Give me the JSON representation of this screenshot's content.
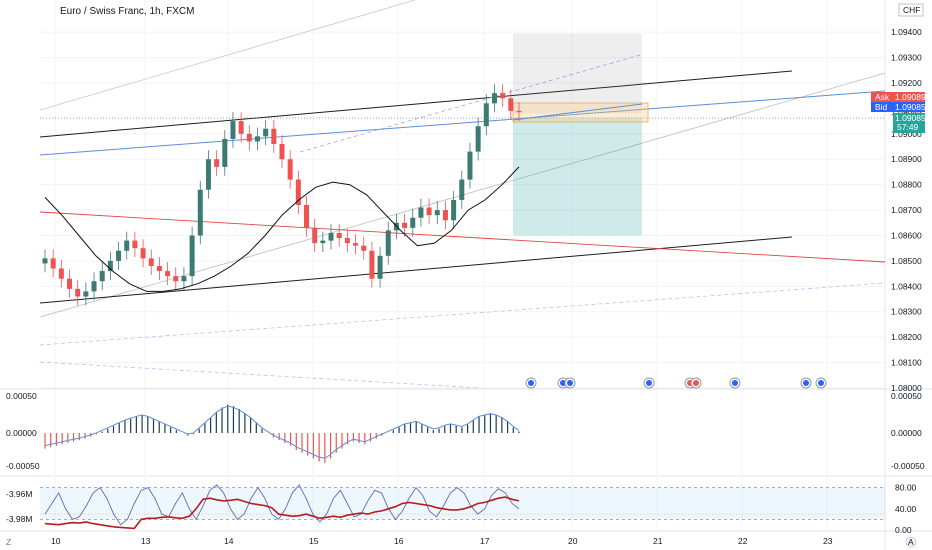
{
  "header": {
    "title": "Euro / Swiss Franc, 1h, FXCM",
    "currency": "CHF"
  },
  "quote": {
    "ask_label": "Ask",
    "ask": "1.09089",
    "bid_label": "Bid",
    "bid": "1.09085",
    "last": "1.09085",
    "countdown": "57:49"
  },
  "colors": {
    "up": "#26a69a",
    "down": "#ef5350",
    "candle_body": "#3c7a72",
    "accent_blue": "#2962ff",
    "red_line": "#e04545",
    "black_line": "#1d1d1d"
  },
  "chart_data": [
    {
      "type": "candlestick",
      "pane": "price",
      "ylim": [
        1.08,
        1.095
      ],
      "yticks": [
        "1.09400",
        "1.09300",
        "1.09200",
        "1.09085",
        "1.09000",
        "1.08900",
        "1.08800",
        "1.08700",
        "1.08600",
        "1.08500",
        "1.08400",
        "1.08300",
        "1.08200",
        "1.08100",
        "1.08000"
      ],
      "xticks": [
        "10",
        "13",
        "14",
        "15",
        "16",
        "17",
        "20",
        "21",
        "22",
        "23"
      ],
      "close_series": [
        1.0851,
        1.0847,
        1.0843,
        1.0839,
        1.0836,
        1.0838,
        1.0842,
        1.0846,
        1.085,
        1.0854,
        1.0858,
        1.0855,
        1.0851,
        1.0848,
        1.0846,
        1.0844,
        1.0842,
        1.0844,
        1.086,
        1.0878,
        1.089,
        1.0887,
        1.0898,
        1.0905,
        1.09,
        1.0897,
        1.0899,
        1.0902,
        1.0896,
        1.089,
        1.0882,
        1.0872,
        1.0863,
        1.0857,
        1.0858,
        1.0861,
        1.0859,
        1.0857,
        1.0856,
        1.0854,
        1.0843,
        1.0852,
        1.0862,
        1.0865,
        1.0863,
        1.0867,
        1.0871,
        1.0868,
        1.087,
        1.0866,
        1.0874,
        1.0882,
        1.0893,
        1.0903,
        1.0912,
        1.0916,
        1.0914,
        1.0909,
        1.09085
      ],
      "moving_average": [
        1.0875,
        1.0868,
        1.086,
        1.0852,
        1.0846,
        1.0841,
        1.0838,
        1.0838,
        1.0839,
        1.0841,
        1.0844,
        1.0848,
        1.0853,
        1.086,
        1.0868,
        1.0874,
        1.0879,
        1.0881,
        1.088,
        1.0876,
        1.0869,
        1.0862,
        1.0856,
        1.0857,
        1.0862,
        1.087,
        1.0874,
        1.088,
        1.0887
      ],
      "trend_lines": "ascending channels, descending red line, blue line, SMA",
      "position_tool": {
        "entry": 1.0908,
        "stop": 1.0934,
        "target": 1.086
      }
    },
    {
      "type": "bar",
      "pane": "histogram",
      "yticks": [
        "0.00050",
        "0.00000",
        "-0.00050"
      ],
      "values": [
        -0.00022,
        -0.0002,
        -0.00018,
        -0.00016,
        -0.00014,
        -0.00012,
        -0.0001,
        -8e-05,
        -5e-05,
        -2e-05,
        2e-05,
        6e-05,
        0.0001,
        0.00014,
        0.00018,
        0.00021,
        0.00024,
        0.00026,
        0.00024,
        0.0002,
        0.00016,
        0.00012,
        8e-05,
        4e-05,
        0.0,
        -4e-05,
        -2e-05,
        6e-05,
        0.00014,
        0.00022,
        0.0003,
        0.00036,
        0.0004,
        0.00038,
        0.00034,
        0.00028,
        0.00022,
        0.00014,
        6e-05,
        0.0,
        -6e-05,
        -0.0001,
        -0.00014,
        -0.00018,
        -0.00024,
        -0.00028,
        -0.00032,
        -0.00036,
        -0.0004,
        -0.00042,
        -0.00036,
        -0.00028,
        -0.00022,
        -0.00016,
        -0.00012,
        -0.00014,
        -0.00016,
        -0.00012,
        -8e-05,
        -4e-05,
        0.0,
        4e-05,
        8e-05,
        0.00012,
        0.00014,
        0.00016,
        0.00012,
        8e-05,
        4e-05,
        6e-05,
        0.0001,
        0.00012,
        0.0001,
        8e-05,
        0.00012,
        0.00018,
        0.00024,
        0.00026,
        0.00028,
        0.00026,
        0.00022,
        0.00016,
        8e-05,
        2e-05
      ]
    },
    {
      "type": "line",
      "pane": "oscillator",
      "left_labels": [
        "-3.96M",
        "-3.98M"
      ],
      "right_ticks": [
        "80.00",
        "40.00",
        "0.00"
      ],
      "band": [
        20,
        80
      ],
      "series": [
        {
          "color": "#b71c1c",
          "values": [
            12,
            11,
            10,
            12,
            14,
            13,
            15,
            12,
            10,
            8,
            6,
            5,
            4,
            3,
            20,
            22,
            22,
            24,
            25,
            23,
            22,
            26,
            40,
            58,
            60,
            57,
            55,
            56,
            58,
            54,
            50,
            48,
            46,
            42,
            30,
            28,
            26,
            27,
            30,
            26,
            22,
            24,
            26,
            24,
            28,
            30,
            32,
            30,
            34,
            36,
            40,
            44,
            50,
            52,
            50,
            48,
            46,
            42,
            40,
            38,
            38,
            40,
            44,
            50,
            52,
            56,
            60,
            62,
            58,
            55
          ]
        },
        {
          "color": "#5c6bc0",
          "values": [
            30,
            50,
            70,
            40,
            20,
            25,
            45,
            70,
            80,
            60,
            30,
            10,
            20,
            50,
            75,
            80,
            60,
            30,
            25,
            50,
            70,
            40,
            20,
            45,
            75,
            85,
            70,
            40,
            20,
            30,
            60,
            80,
            60,
            30,
            20,
            40,
            70,
            85,
            60,
            30,
            15,
            30,
            60,
            75,
            50,
            25,
            30,
            55,
            75,
            70,
            40,
            20,
            35,
            60,
            80,
            65,
            35,
            25,
            45,
            70,
            80,
            70,
            45,
            30,
            40,
            65,
            78,
            70,
            50,
            40
          ]
        }
      ]
    }
  ]
}
